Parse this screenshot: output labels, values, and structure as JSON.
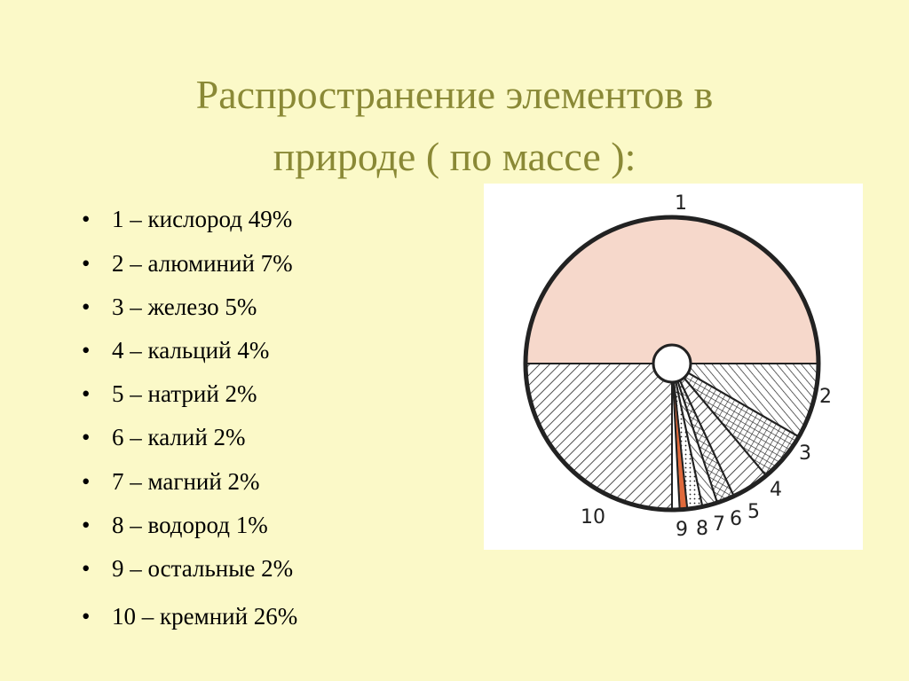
{
  "header": {
    "title_lines": [
      "Распространение элементов в",
      "природе ( по массе ):"
    ]
  },
  "list": {
    "items": [
      "1 – кислород 49%",
      "2 – алюминий 7%",
      "3 – железо 5%",
      "4 – кальций 4%",
      "5 – натрий 2%",
      "6 – калий 2%",
      "7 – магний 2%",
      "8 – водород 1%",
      "9 – остальные 2%",
      "10 – кремний 26%"
    ]
  },
  "diagram": {
    "labels": [
      "1",
      "2",
      "3",
      "4",
      "5",
      "6",
      "7",
      "8",
      "9",
      "10"
    ]
  }
}
